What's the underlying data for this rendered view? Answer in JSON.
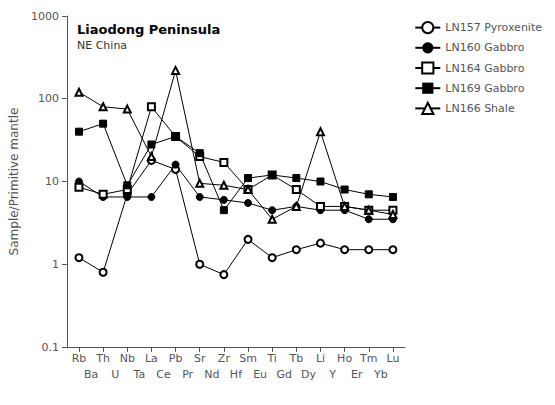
{
  "chart_data": {
    "type": "line",
    "title": "Liaodong Peninsula",
    "subtitle": "NE China",
    "ylabel": "Sample/Primitive mantle",
    "categories": [
      "Rb",
      "Th",
      "Nb",
      "La",
      "Pb",
      "Sr",
      "Zr",
      "Sm",
      "Ti",
      "Tb",
      "Li",
      "Ho",
      "Tm",
      "Lu"
    ],
    "categories2": [
      "Ba",
      "U",
      "Ta",
      "Ce",
      "Pr",
      "Nd",
      "Hf",
      "Eu",
      "Gd",
      "Dy",
      "Y",
      "Er",
      "Yb"
    ],
    "log": "y",
    "ylim": [
      0.1,
      1000
    ],
    "yticks": [
      0.1,
      1,
      10,
      100,
      1000
    ],
    "grid": false,
    "legend": "right",
    "series": [
      {
        "name": "LN157 Pyroxenite",
        "color": "#000000",
        "marker": "circle-open",
        "values": [
          1.2,
          0.8,
          7.0,
          18,
          14,
          1.0,
          0.75,
          2.0,
          1.2,
          1.5,
          1.8,
          1.5,
          1.5,
          1.5
        ]
      },
      {
        "name": "LN160 Gabbro",
        "color": "#000000",
        "marker": "circle",
        "values": [
          10,
          6.5,
          6.5,
          6.5,
          16,
          6.5,
          6.0,
          5.5,
          4.5,
          5.0,
          4.5,
          4.5,
          3.5,
          3.5
        ]
      },
      {
        "name": "LN164 Gabbro",
        "color": "#000000",
        "marker": "square-open",
        "values": [
          8.5,
          7.0,
          8.0,
          80,
          35,
          20,
          17,
          8.0,
          12,
          8.0,
          5.0,
          5.0,
          4.5,
          4.5
        ]
      },
      {
        "name": "LN169 Gabbro",
        "color": "#000000",
        "marker": "square",
        "values": [
          40,
          50,
          9.0,
          28,
          35,
          22,
          4.5,
          11,
          12,
          11,
          10,
          8.0,
          7.0,
          6.5
        ]
      },
      {
        "name": "LN166 Shale",
        "color": "#000000",
        "marker": "triangle-open",
        "values": [
          120,
          80,
          75,
          20,
          220,
          9.5,
          9.0,
          8.0,
          3.5,
          5.0,
          40,
          5.0,
          4.5,
          4.0
        ]
      }
    ]
  }
}
